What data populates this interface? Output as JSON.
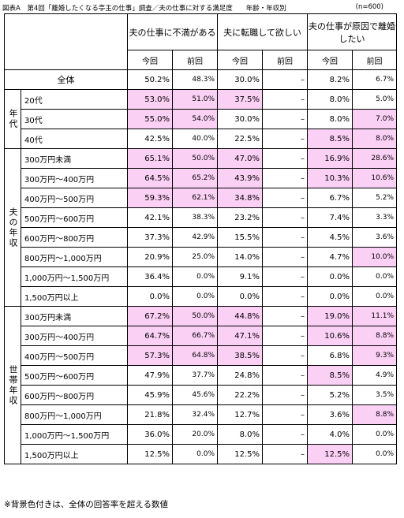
{
  "title": "図表A　第4回「離婚したくなる亭主の仕事」調査／夫の仕事に対する満足度　　年齢・年収別",
  "n_label": "(n=600)",
  "headers": {
    "col1": "夫の仕事に不満がある",
    "col2": "夫に転職して欲しい",
    "col3": "夫の仕事が原因で離婚したい",
    "this_time": "今回",
    "last_time": "前回"
  },
  "total": {
    "label": "全体",
    "v": [
      "50.2%",
      "48.3%",
      "30.0%",
      "–",
      "8.2%",
      "6.7%"
    ]
  },
  "groups": {
    "age": "年代",
    "husband_income": "夫の年収",
    "household_income": "世帯年収"
  },
  "rows": [
    {
      "label": "20代",
      "v": [
        "53.0%",
        "51.0%",
        "37.5%",
        "–",
        "8.0%",
        "5.0%"
      ],
      "hl": [
        true,
        true,
        true,
        false,
        false,
        false
      ]
    },
    {
      "label": "30代",
      "v": [
        "55.0%",
        "54.0%",
        "30.0%",
        "–",
        "8.0%",
        "7.0%"
      ],
      "hl": [
        true,
        true,
        false,
        false,
        false,
        true
      ]
    },
    {
      "label": "40代",
      "v": [
        "42.5%",
        "40.0%",
        "22.5%",
        "–",
        "8.5%",
        "8.0%"
      ],
      "hl": [
        false,
        false,
        false,
        false,
        true,
        true
      ]
    },
    {
      "label": "300万円未満",
      "v": [
        "65.1%",
        "50.0%",
        "47.0%",
        "–",
        "16.9%",
        "28.6%"
      ],
      "hl": [
        true,
        true,
        true,
        false,
        true,
        true
      ]
    },
    {
      "label": "300万円～400万円",
      "v": [
        "64.5%",
        "65.2%",
        "43.9%",
        "–",
        "10.3%",
        "10.6%"
      ],
      "hl": [
        true,
        true,
        true,
        false,
        true,
        true
      ]
    },
    {
      "label": "400万円～500万円",
      "v": [
        "59.3%",
        "62.1%",
        "34.8%",
        "–",
        "6.7%",
        "5.2%"
      ],
      "hl": [
        true,
        true,
        true,
        false,
        false,
        false
      ]
    },
    {
      "label": "500万円～600万円",
      "v": [
        "42.1%",
        "38.3%",
        "23.2%",
        "–",
        "7.4%",
        "3.3%"
      ],
      "hl": [
        false,
        false,
        false,
        false,
        false,
        false
      ]
    },
    {
      "label": "600万円～800万円",
      "v": [
        "37.3%",
        "42.9%",
        "15.5%",
        "–",
        "4.5%",
        "3.6%"
      ],
      "hl": [
        false,
        false,
        false,
        false,
        false,
        false
      ]
    },
    {
      "label": "800万円～1,000万円",
      "v": [
        "20.9%",
        "25.0%",
        "14.0%",
        "–",
        "4.7%",
        "10.0%"
      ],
      "hl": [
        false,
        false,
        false,
        false,
        false,
        true
      ]
    },
    {
      "label": "1,000万円～1,500万円",
      "v": [
        "36.4%",
        "0.0%",
        "9.1%",
        "–",
        "0.0%",
        "0.0%"
      ],
      "hl": [
        false,
        false,
        false,
        false,
        false,
        false
      ]
    },
    {
      "label": "1,500万円以上",
      "v": [
        "0.0%",
        "0.0%",
        "0.0%",
        "–",
        "0.0%",
        "0.0%"
      ],
      "hl": [
        false,
        false,
        false,
        false,
        false,
        false
      ]
    },
    {
      "label": "300万円未満",
      "v": [
        "67.2%",
        "50.0%",
        "44.8%",
        "–",
        "19.0%",
        "11.1%"
      ],
      "hl": [
        true,
        true,
        true,
        false,
        true,
        true
      ]
    },
    {
      "label": "300万円～400万円",
      "v": [
        "64.7%",
        "66.7%",
        "47.1%",
        "–",
        "10.6%",
        "8.8%"
      ],
      "hl": [
        true,
        true,
        true,
        false,
        true,
        true
      ]
    },
    {
      "label": "400万円～500万円",
      "v": [
        "57.3%",
        "64.8%",
        "38.5%",
        "–",
        "6.8%",
        "9.3%"
      ],
      "hl": [
        true,
        true,
        true,
        false,
        false,
        true
      ]
    },
    {
      "label": "500万円～600万円",
      "v": [
        "47.9%",
        "37.7%",
        "24.8%",
        "–",
        "8.5%",
        "4.9%"
      ],
      "hl": [
        false,
        false,
        false,
        false,
        true,
        false
      ]
    },
    {
      "label": "600万円～800万円",
      "v": [
        "45.9%",
        "45.6%",
        "22.2%",
        "–",
        "5.2%",
        "3.5%"
      ],
      "hl": [
        false,
        false,
        false,
        false,
        false,
        false
      ]
    },
    {
      "label": "800万円～1,000万円",
      "v": [
        "21.8%",
        "32.4%",
        "12.7%",
        "–",
        "3.6%",
        "8.8%"
      ],
      "hl": [
        false,
        false,
        false,
        false,
        false,
        true
      ]
    },
    {
      "label": "1,000万円～1,500万円",
      "v": [
        "36.0%",
        "20.0%",
        "8.0%",
        "–",
        "4.0%",
        "0.0%"
      ],
      "hl": [
        false,
        false,
        false,
        false,
        false,
        false
      ]
    },
    {
      "label": "1,500万円以上",
      "v": [
        "12.5%",
        "0.0%",
        "12.5%",
        "–",
        "12.5%",
        "0.0%"
      ],
      "hl": [
        false,
        false,
        false,
        false,
        true,
        false
      ]
    }
  ],
  "footer": "※背景色付きは、全体の回答率を超える数値",
  "colors": {
    "highlight": "#fbd0f5"
  }
}
